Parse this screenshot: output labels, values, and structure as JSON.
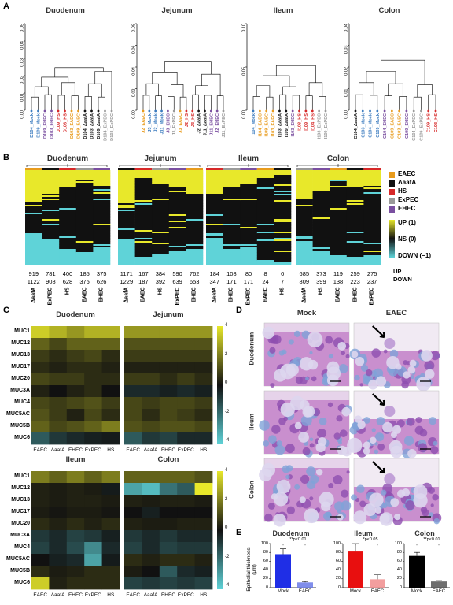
{
  "panels": {
    "A": "A",
    "B": "B",
    "C": "C",
    "D": "D",
    "E": "E"
  },
  "dendrograms": [
    {
      "title": "Duodenum",
      "yticks": [
        "0.00",
        "0.01",
        "0.02",
        "0.03",
        "0.04",
        "0.05"
      ],
      "leaves": [
        {
          "label": "D104_Mock",
          "color": "#3b7bbf"
        },
        {
          "label": "D109_Mock",
          "color": "#3b7bbf"
        },
        {
          "label": "D109_EHEC",
          "color": "#7a4fa0"
        },
        {
          "label": "D103_EHEC",
          "color": "#7a4fa0"
        },
        {
          "label": "D109_HS",
          "color": "#d62828"
        },
        {
          "label": "D103_HS",
          "color": "#d62828"
        },
        {
          "label": "D103_EAEC",
          "color": "#e89b1c"
        },
        {
          "label": "D109_EAEC",
          "color": "#e89b1c"
        },
        {
          "label": "D104_ΔaafA",
          "color": "#111111"
        },
        {
          "label": "D103_ΔaafA",
          "color": "#111111"
        },
        {
          "label": "D109_ΔaafA",
          "color": "#111111"
        },
        {
          "label": "D104_ExPEC",
          "color": "#999999"
        },
        {
          "label": "D103_ExPEC",
          "color": "#999999"
        }
      ]
    },
    {
      "title": "Jejunum",
      "yticks": [
        "0.00",
        "0.02",
        "0.04",
        "0.06",
        "0.08"
      ],
      "leaves": [
        {
          "label": "J2_EAEC",
          "color": "#e89b1c"
        },
        {
          "label": "J3_Mock",
          "color": "#3b7bbf"
        },
        {
          "label": "J2_Mock",
          "color": "#3b7bbf"
        },
        {
          "label": "J11_Mock",
          "color": "#3b7bbf"
        },
        {
          "label": "J3_EHEC",
          "color": "#7a4fa0"
        },
        {
          "label": "J3_ExPEC",
          "color": "#999999"
        },
        {
          "label": "J3_EAEC",
          "color": "#e89b1c"
        },
        {
          "label": "J2_HS",
          "color": "#d62828"
        },
        {
          "label": "J3_HS",
          "color": "#d62828"
        },
        {
          "label": "J2_ΔaafA",
          "color": "#111111"
        },
        {
          "label": "J11_ΔaafA",
          "color": "#111111"
        },
        {
          "label": "J11_EHEC",
          "color": "#7a4fa0"
        },
        {
          "label": "J2_EHEC",
          "color": "#7a4fa0"
        },
        {
          "label": "J11_ExPEC",
          "color": "#999999"
        }
      ]
    },
    {
      "title": "Ileum",
      "yticks": [
        "0.00",
        "0.05",
        "0.10"
      ],
      "leaves": [
        {
          "label": "I104_Mock",
          "color": "#3b7bbf"
        },
        {
          "label": "I104_EAEC",
          "color": "#e89b1c"
        },
        {
          "label": "I109_EAEC",
          "color": "#e89b1c"
        },
        {
          "label": "I103_EAEC",
          "color": "#e89b1c"
        },
        {
          "label": "I103_ΔaafA",
          "color": "#111111"
        },
        {
          "label": "I109_ΔaafA",
          "color": "#111111"
        },
        {
          "label": "I103_EHEC",
          "color": "#7a4fa0"
        },
        {
          "label": "I103_HS",
          "color": "#d62828"
        },
        {
          "label": "I109_HS",
          "color": "#d62828"
        },
        {
          "label": "I104_HS",
          "color": "#d62828"
        },
        {
          "label": "I103_ExPEC",
          "color": "#999999"
        },
        {
          "label": "I109_ExPEC",
          "color": "#999999"
        }
      ]
    },
    {
      "title": "Colon",
      "yticks": [
        "0.00",
        "0.01",
        "0.02",
        "0.03",
        "0.04"
      ],
      "leaves": [
        {
          "label": "C104_ΔaafA",
          "color": "#111111"
        },
        {
          "label": "C103_Mock",
          "color": "#3b7bbf"
        },
        {
          "label": "C104_Mock",
          "color": "#3b7bbf"
        },
        {
          "label": "C109_Mock",
          "color": "#3b7bbf"
        },
        {
          "label": "C104_EHEC",
          "color": "#7a4fa0"
        },
        {
          "label": "C109_EAEC",
          "color": "#e89b1c"
        },
        {
          "label": "C103_EAEC",
          "color": "#e89b1c"
        },
        {
          "label": "C109_EHEC",
          "color": "#7a4fa0"
        },
        {
          "label": "C104_ExPEC",
          "color": "#999999"
        },
        {
          "label": "C109_ExPEC",
          "color": "#999999"
        },
        {
          "label": "C109_HS",
          "color": "#d62828"
        },
        {
          "label": "C103_HS",
          "color": "#d62828"
        }
      ]
    }
  ],
  "heatmaps_b": [
    {
      "title": "Duodenum",
      "cols": [
        "ΔaafA",
        "ExPEC",
        "HS",
        "EAEC",
        "EHEC"
      ],
      "up": [
        "919",
        "781",
        "400",
        "185",
        "375"
      ],
      "down": [
        "1122",
        "908",
        "628",
        "375",
        "626"
      ]
    },
    {
      "title": "Jejunum",
      "cols": [
        "ΔaafA",
        "EAEC",
        "HS",
        "ExPEC",
        "EHEC"
      ],
      "up": [
        "1171",
        "167",
        "384",
        "590",
        "762"
      ],
      "down": [
        "1229",
        "187",
        "392",
        "639",
        "653"
      ]
    },
    {
      "title": "Ileum",
      "cols": [
        "ΔaafA",
        "EHEC",
        "ExPEC",
        "EAEC",
        "HS"
      ],
      "up": [
        "184",
        "108",
        "80",
        "8",
        "0"
      ],
      "down": [
        "347",
        "171",
        "171",
        "24",
        "7"
      ]
    },
    {
      "title": "Colon",
      "cols": [
        "ΔaafA",
        "HS",
        "EAEC",
        "EHEC",
        "ExPEC"
      ],
      "up": [
        "685",
        "373",
        "119",
        "259",
        "275"
      ],
      "down": [
        "809",
        "399",
        "138",
        "223",
        "237"
      ]
    }
  ],
  "legend_b": {
    "strains": [
      {
        "label": "EAEC",
        "color": "#e89b1c"
      },
      {
        "label": "ΔaafA",
        "color": "#111111"
      },
      {
        "label": "HS",
        "color": "#d62828"
      },
      {
        "label": "ExPEC",
        "color": "#999999"
      },
      {
        "label": "EHEC",
        "color": "#7a4fa0"
      }
    ],
    "scale": [
      {
        "label": "UP (1)",
        "color": "#e8e82a"
      },
      {
        "label": "NS (0)",
        "color": "#111111"
      },
      {
        "label": "DOWN (−1)",
        "color": "#5fd3d8"
      }
    ],
    "up_label": "UP",
    "down_label": "DOWN"
  },
  "panel_c": {
    "titles": [
      "Duodenum",
      "Jejunum",
      "Ileum",
      "Colon"
    ],
    "rows": [
      "MUC1",
      "MUC12",
      "MUC13",
      "MUC17",
      "MUC20",
      "MUC3A",
      "MUC4",
      "MUC5AC",
      "MUC5B",
      "MUC6"
    ],
    "cols": [
      "EAEC",
      "ΔaafA",
      "EHEC",
      "ExPEC",
      "HS"
    ],
    "scale_ticks": [
      "4",
      "2",
      "0",
      "-2",
      "-4"
    ],
    "values": {
      "Duodenum": [
        [
          3.5,
          3,
          2.5,
          3,
          3
        ],
        [
          1.5,
          1,
          1.5,
          1.5,
          1.5
        ],
        [
          0.8,
          0.5,
          0.8,
          1,
          0.5
        ],
        [
          0.5,
          0.3,
          0.5,
          0.5,
          0.3
        ],
        [
          1,
          0.8,
          0.8,
          0.5,
          0.5
        ],
        [
          0.3,
          0,
          0.3,
          0.5,
          0
        ],
        [
          1,
          0.8,
          1,
          1.2,
          0.8
        ],
        [
          1.2,
          0.8,
          0.3,
          1,
          0.5
        ],
        [
          1.5,
          1,
          1.2,
          1.5,
          2
        ],
        [
          -1.5,
          -0.8,
          -0.5,
          -0.3,
          -0.2
        ]
      ],
      "Jejunum": [
        [
          2.5,
          2.5,
          2.5,
          2.5,
          2.5
        ],
        [
          1.2,
          1.2,
          1.2,
          1.2,
          1.2
        ],
        [
          0.8,
          0.8,
          0.8,
          0.8,
          0.8
        ],
        [
          0.3,
          0.3,
          0.3,
          0.3,
          0.3
        ],
        [
          0.8,
          0.8,
          0.5,
          0.8,
          0.5
        ],
        [
          -0.5,
          -0.5,
          -0.3,
          -0.5,
          -0.3
        ],
        [
          1,
          0.8,
          1,
          1,
          0.8
        ],
        [
          1,
          0.5,
          1,
          0.8,
          0.5
        ],
        [
          1.2,
          1,
          1.2,
          1.2,
          1
        ],
        [
          -1.5,
          -0.8,
          -1,
          -0.5,
          -0.5
        ]
      ],
      "Ileum": [
        [
          2,
          1.5,
          2,
          1.5,
          2
        ],
        [
          0.3,
          0.2,
          0.3,
          0.2,
          -0.2
        ],
        [
          0.3,
          0.2,
          0.3,
          0.3,
          0.2
        ],
        [
          0.2,
          0.1,
          0.2,
          0.2,
          0.1
        ],
        [
          0.5,
          0.3,
          0.5,
          0.3,
          0.5
        ],
        [
          -0.8,
          -0.5,
          -1,
          -0.8,
          -0.3
        ],
        [
          -1,
          -0.5,
          -1.2,
          -2.5,
          -0.5
        ],
        [
          0,
          -0.3,
          -0.5,
          -3,
          -0.2
        ],
        [
          0.5,
          0.2,
          0.3,
          0.5,
          0.5
        ],
        [
          3.5,
          0.3,
          0.5,
          0.5,
          0.5
        ]
      ],
      "Colon": [
        [
          1.5,
          1.5,
          1.5,
          1.5,
          1.2
        ],
        [
          -3,
          -3.5,
          -2,
          -1.5,
          4
        ],
        [
          0.3,
          0.2,
          0.3,
          0.3,
          0.2
        ],
        [
          0,
          -0.3,
          0,
          0,
          0
        ],
        [
          0.3,
          0.2,
          0.2,
          0.3,
          0.3
        ],
        [
          -0.8,
          -0.5,
          -0.8,
          -0.5,
          -0.5
        ],
        [
          -1,
          -0.5,
          -1,
          -0.8,
          -0.8
        ],
        [
          0.5,
          0.3,
          0.5,
          0.5,
          0.3
        ],
        [
          0.2,
          0,
          -1.5,
          -0.5,
          -0.3
        ],
        [
          -1,
          -0.8,
          -1,
          -0.8,
          -1
        ]
      ]
    }
  },
  "panel_d": {
    "col_titles": [
      "Mock",
      "EAEC"
    ],
    "row_labels": [
      "Duodenum",
      "Ileum",
      "Colon"
    ]
  },
  "chart_data": [
    {
      "type": "bar",
      "title": "Duodenum",
      "categories": [
        "Mock",
        "EAEC"
      ],
      "values": [
        76,
        12
      ],
      "errors": [
        12,
        2
      ],
      "colors": [
        "#1f2ee6",
        "#6a7ae8"
      ],
      "ylabel": "Epithelial thickness (μm)",
      "ylim": [
        0,
        100
      ],
      "yticks": [
        "0",
        "20",
        "40",
        "60",
        "80",
        "100"
      ],
      "annotation": "**p<0.01"
    },
    {
      "type": "bar",
      "title": "Ileum",
      "categories": [
        "Mock",
        "EAEC"
      ],
      "values": [
        82,
        19
      ],
      "errors": [
        18,
        10
      ],
      "colors": [
        "#e80f0f",
        "#f08d8d"
      ],
      "ylim": [
        0,
        100
      ],
      "yticks": [
        "0",
        "20",
        "40",
        "60",
        "80",
        "100"
      ],
      "annotation": "*p<0.05"
    },
    {
      "type": "bar",
      "title": "Colon",
      "categories": [
        "Mock",
        "EAEC"
      ],
      "values": [
        72,
        14
      ],
      "errors": [
        8,
        2
      ],
      "colors": [
        "#000000",
        "#555555"
      ],
      "ylim": [
        0,
        100
      ],
      "yticks": [
        "0",
        "20",
        "40",
        "60",
        "80",
        "100"
      ],
      "annotation": "**p<0.01"
    }
  ]
}
